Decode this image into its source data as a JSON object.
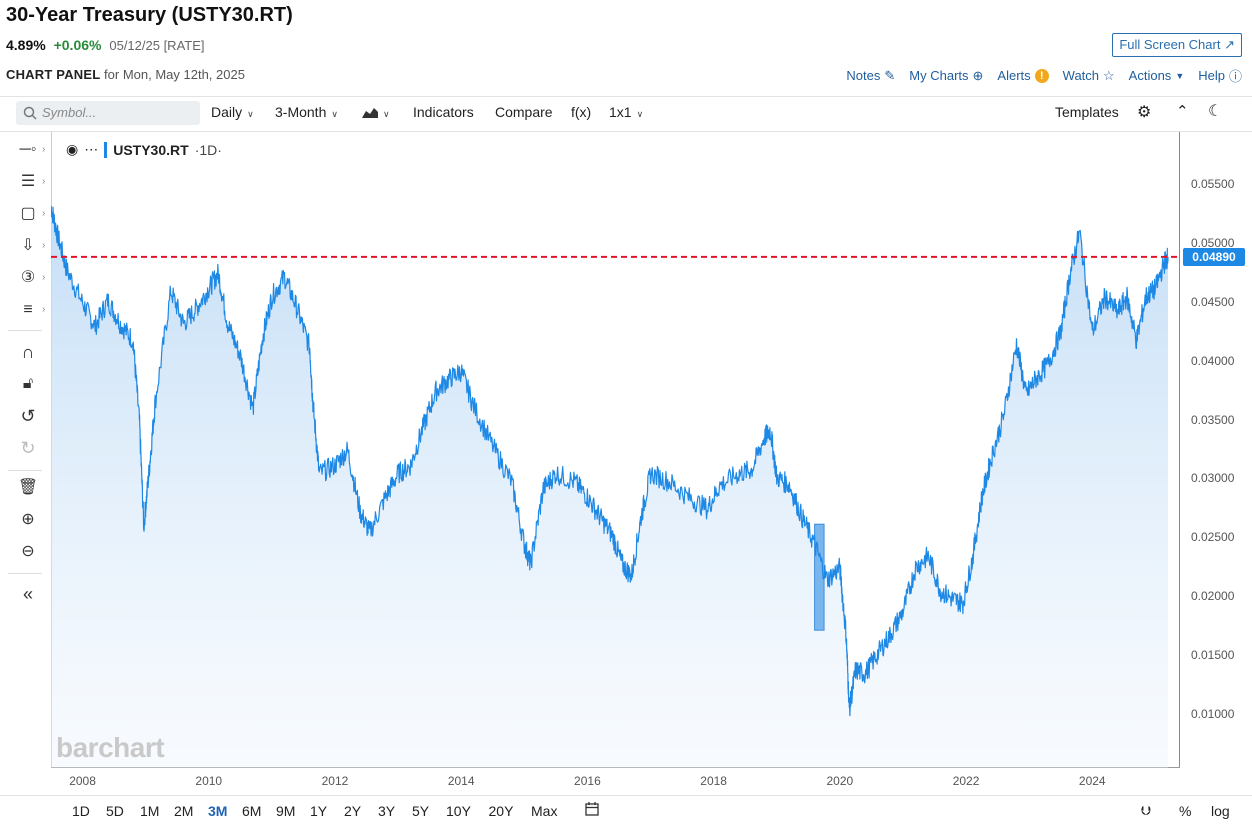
{
  "header": {
    "title": "30-Year Treasury (USTY30.RT)",
    "price": "4.89%",
    "change": "+0.06%",
    "meta": "05/12/25 [RATE]",
    "fullscreen_label": "Full Screen Chart",
    "panel_label": "CHART PANEL",
    "panel_date": "for Mon, May 12th, 2025"
  },
  "links": {
    "notes": "Notes",
    "my_charts": "My Charts",
    "alerts": "Alerts",
    "watch": "Watch",
    "actions": "Actions",
    "help": "Help"
  },
  "toolbar": {
    "symbol_placeholder": "Symbol...",
    "interval": "Daily",
    "range": "3-Month",
    "indicators": "Indicators",
    "compare": "Compare",
    "fx": "f(x)",
    "layout": "1x1",
    "templates": "Templates"
  },
  "legend": {
    "symbol": "USTY30.RT",
    "interval": "·1D·"
  },
  "watermark": "barchart",
  "ranges": [
    "1D",
    "5D",
    "1M",
    "2M",
    "3M",
    "6M",
    "9M",
    "1Y",
    "2Y",
    "3Y",
    "5Y",
    "10Y",
    "20Y",
    "Max"
  ],
  "active_range": "3M",
  "bottom_right": {
    "percent": "%",
    "log": "log"
  },
  "chart_data": {
    "type": "area",
    "title": "USTY30.RT",
    "ylabel": "",
    "xlabel": "",
    "y_ticks": [
      "0.05500",
      "0.05000",
      "0.04500",
      "0.04000",
      "0.03500",
      "0.03000",
      "0.02500",
      "0.02000",
      "0.01500",
      "0.01000"
    ],
    "x_ticks": [
      "2008",
      "2010",
      "2012",
      "2014",
      "2016",
      "2018",
      "2020",
      "2022",
      "2024"
    ],
    "last_value_label": "0.04890",
    "last_value": 0.0489,
    "ylim": [
      0.0055,
      0.0595
    ],
    "xlim": [
      2007.5,
      2025.2
    ],
    "series": [
      {
        "x": [
          2007.5,
          2007.6,
          2007.75,
          2008.0,
          2008.2,
          2008.4,
          2008.6,
          2008.8,
          2008.9,
          2008.97,
          2009.05,
          2009.15,
          2009.4,
          2009.6,
          2009.8,
          2010.0,
          2010.15,
          2010.3,
          2010.5,
          2010.7,
          2010.85,
          2011.0,
          2011.2,
          2011.4,
          2011.6,
          2011.65,
          2011.75,
          2012.0,
          2012.2,
          2012.4,
          2012.55,
          2012.8,
          2013.0,
          2013.2,
          2013.4,
          2013.6,
          2013.8,
          2014.0,
          2014.2,
          2014.5,
          2014.8,
          2015.0,
          2015.1,
          2015.3,
          2015.5,
          2015.8,
          2016.0,
          2016.2,
          2016.4,
          2016.55,
          2016.7,
          2016.85,
          2017.0,
          2017.3,
          2017.6,
          2017.9,
          2018.1,
          2018.4,
          2018.6,
          2018.8,
          2018.9,
          2019.0,
          2019.2,
          2019.4,
          2019.6,
          2019.8,
          2020.0,
          2020.1,
          2020.15,
          2020.25,
          2020.4,
          2020.6,
          2020.8,
          2021.0,
          2021.2,
          2021.4,
          2021.6,
          2021.8,
          2021.95,
          2022.1,
          2022.25,
          2022.4,
          2022.6,
          2022.8,
          2022.95,
          2023.1,
          2023.3,
          2023.5,
          2023.65,
          2023.8,
          2024.0,
          2024.2,
          2024.4,
          2024.55,
          2024.7,
          2024.85,
          2025.0,
          2025.15,
          2025.2
        ],
        "y": [
          0.0532,
          0.0508,
          0.0478,
          0.045,
          0.043,
          0.0452,
          0.0432,
          0.0418,
          0.035,
          0.026,
          0.0305,
          0.0365,
          0.046,
          0.0432,
          0.0445,
          0.0462,
          0.0475,
          0.0432,
          0.0405,
          0.036,
          0.042,
          0.0455,
          0.0472,
          0.0445,
          0.0412,
          0.0365,
          0.0305,
          0.0312,
          0.0325,
          0.0272,
          0.0255,
          0.0285,
          0.0305,
          0.0312,
          0.0345,
          0.0375,
          0.0385,
          0.0392,
          0.0362,
          0.0328,
          0.0298,
          0.0245,
          0.0228,
          0.0292,
          0.0305,
          0.0298,
          0.0285,
          0.0268,
          0.0252,
          0.0228,
          0.0218,
          0.0268,
          0.0305,
          0.0298,
          0.0285,
          0.0275,
          0.0295,
          0.0305,
          0.0308,
          0.0335,
          0.0342,
          0.0302,
          0.0295,
          0.0268,
          0.0245,
          0.0215,
          0.0225,
          0.0168,
          0.0105,
          0.0138,
          0.0135,
          0.0152,
          0.0168,
          0.0188,
          0.0225,
          0.0235,
          0.0205,
          0.0198,
          0.0195,
          0.0232,
          0.0285,
          0.0318,
          0.0355,
          0.0415,
          0.0372,
          0.0385,
          0.0398,
          0.0425,
          0.0475,
          0.051,
          0.0425,
          0.0455,
          0.0442,
          0.0455,
          0.0418,
          0.0455,
          0.0462,
          0.0485,
          0.0489
        ],
        "highlight": {
          "x0": 2019.6,
          "x1": 2019.75,
          "y0": 0.0172,
          "y1": 0.0262
        }
      }
    ]
  }
}
